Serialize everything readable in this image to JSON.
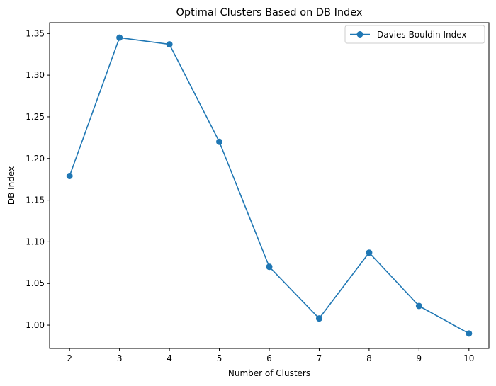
{
  "chart_data": {
    "type": "line",
    "title": "Optimal Clusters Based on DB Index",
    "xlabel": "Number of Clusters",
    "ylabel": "DB Index",
    "x": [
      2,
      3,
      4,
      5,
      6,
      7,
      8,
      9,
      10
    ],
    "series": [
      {
        "name": "Davies-Bouldin Index",
        "values": [
          1.179,
          1.345,
          1.337,
          1.22,
          1.07,
          1.008,
          1.087,
          1.023,
          0.99
        ],
        "color": "#1f77b4",
        "marker": "circle"
      }
    ],
    "xticks": [
      2,
      3,
      4,
      5,
      6,
      7,
      8,
      9,
      10
    ],
    "yticks": [
      1.0,
      1.05,
      1.1,
      1.15,
      1.2,
      1.25,
      1.3,
      1.35
    ],
    "ytick_labels": [
      "1.00",
      "1.05",
      "1.10",
      "1.15",
      "1.20",
      "1.25",
      "1.30",
      "1.35"
    ],
    "xlim": [
      1.6,
      10.4
    ],
    "ylim": [
      0.972,
      1.363
    ],
    "grid": false,
    "legend_position": "top-right"
  }
}
